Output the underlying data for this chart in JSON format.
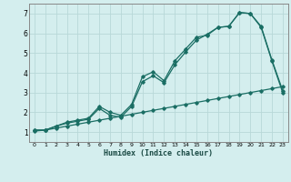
{
  "xlabel": "Humidex (Indice chaleur)",
  "background_color": "#d4eeee",
  "grid_color": "#b8d8d8",
  "line_color": "#1a6e64",
  "xlim": [
    -0.5,
    23.5
  ],
  "ylim": [
    0.5,
    7.5
  ],
  "xticks": [
    0,
    1,
    2,
    3,
    4,
    5,
    6,
    7,
    8,
    9,
    10,
    11,
    12,
    13,
    14,
    15,
    16,
    17,
    18,
    19,
    20,
    21,
    22,
    23
  ],
  "yticks": [
    1,
    2,
    3,
    4,
    5,
    6,
    7
  ],
  "line1_x": [
    0,
    1,
    2,
    3,
    4,
    5,
    6,
    7,
    8,
    9,
    10,
    11,
    12,
    13,
    14,
    15,
    16,
    17,
    18,
    19,
    20,
    21,
    22,
    23
  ],
  "line1_y": [
    1.1,
    1.1,
    1.3,
    1.5,
    1.6,
    1.7,
    2.3,
    2.0,
    1.85,
    2.4,
    3.8,
    4.05,
    3.6,
    4.6,
    5.2,
    5.8,
    5.9,
    6.3,
    6.35,
    7.05,
    7.0,
    6.35,
    4.65,
    3.1
  ],
  "line2_x": [
    0,
    1,
    2,
    3,
    4,
    5,
    6,
    7,
    8,
    9,
    10,
    11,
    12,
    13,
    14,
    15,
    16,
    17,
    18,
    19,
    20,
    21,
    22,
    23
  ],
  "line2_y": [
    1.1,
    1.1,
    1.3,
    1.45,
    1.55,
    1.65,
    2.2,
    1.85,
    1.75,
    2.3,
    3.55,
    3.85,
    3.5,
    4.4,
    5.05,
    5.65,
    5.95,
    6.3,
    6.35,
    7.05,
    7.0,
    6.3,
    4.6,
    3.0
  ],
  "line3_x": [
    0,
    1,
    2,
    3,
    4,
    5,
    6,
    7,
    8,
    9,
    10,
    11,
    12,
    13,
    14,
    15,
    16,
    17,
    18,
    19,
    20,
    21,
    22,
    23
  ],
  "line3_y": [
    1.05,
    1.1,
    1.2,
    1.3,
    1.4,
    1.5,
    1.6,
    1.7,
    1.8,
    1.9,
    2.0,
    2.1,
    2.2,
    2.3,
    2.4,
    2.5,
    2.6,
    2.7,
    2.8,
    2.9,
    3.0,
    3.1,
    3.2,
    3.3
  ]
}
